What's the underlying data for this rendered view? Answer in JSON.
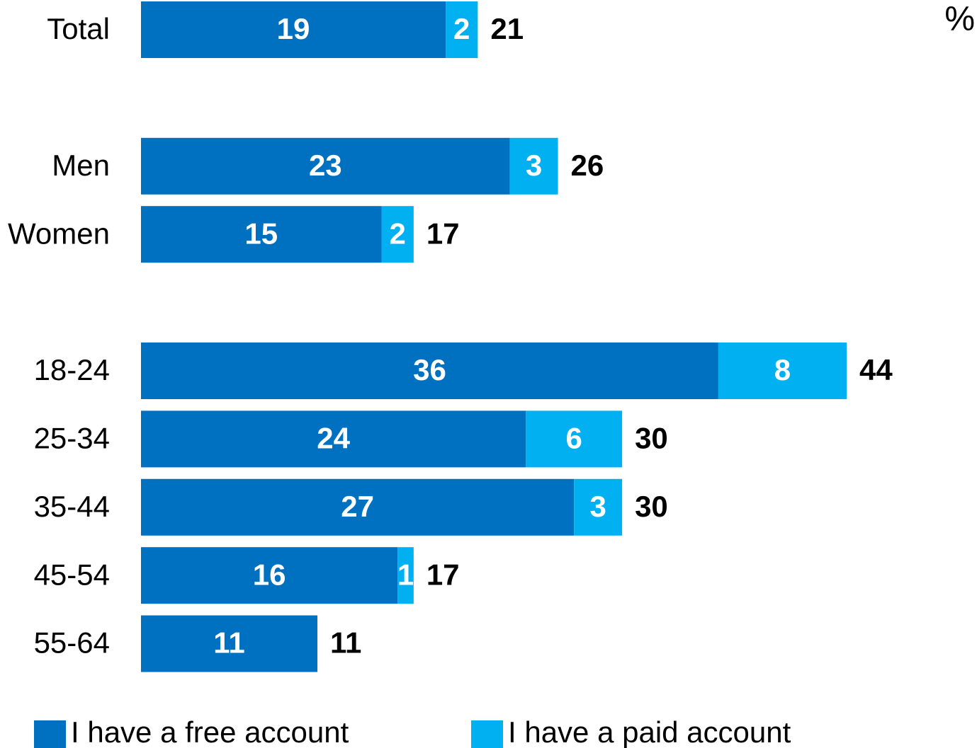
{
  "chart_data": {
    "type": "stacked-bar-horizontal",
    "unit": "%",
    "categories": [
      "Total",
      null,
      "Men",
      "Women",
      null,
      "18-24",
      "25-34",
      "35-44",
      "45-54",
      "55-64"
    ],
    "series": [
      {
        "name": "I have a free account",
        "color": "#0070c0",
        "values": [
          19,
          null,
          23,
          15,
          null,
          36,
          24,
          27,
          16,
          11
        ]
      },
      {
        "name": "I have a paid account",
        "color": "#00b0f0",
        "values": [
          2,
          null,
          3,
          2,
          null,
          8,
          6,
          3,
          1,
          null
        ]
      }
    ],
    "totals": [
      21,
      null,
      26,
      17,
      null,
      44,
      30,
      30,
      17,
      11
    ]
  }
}
